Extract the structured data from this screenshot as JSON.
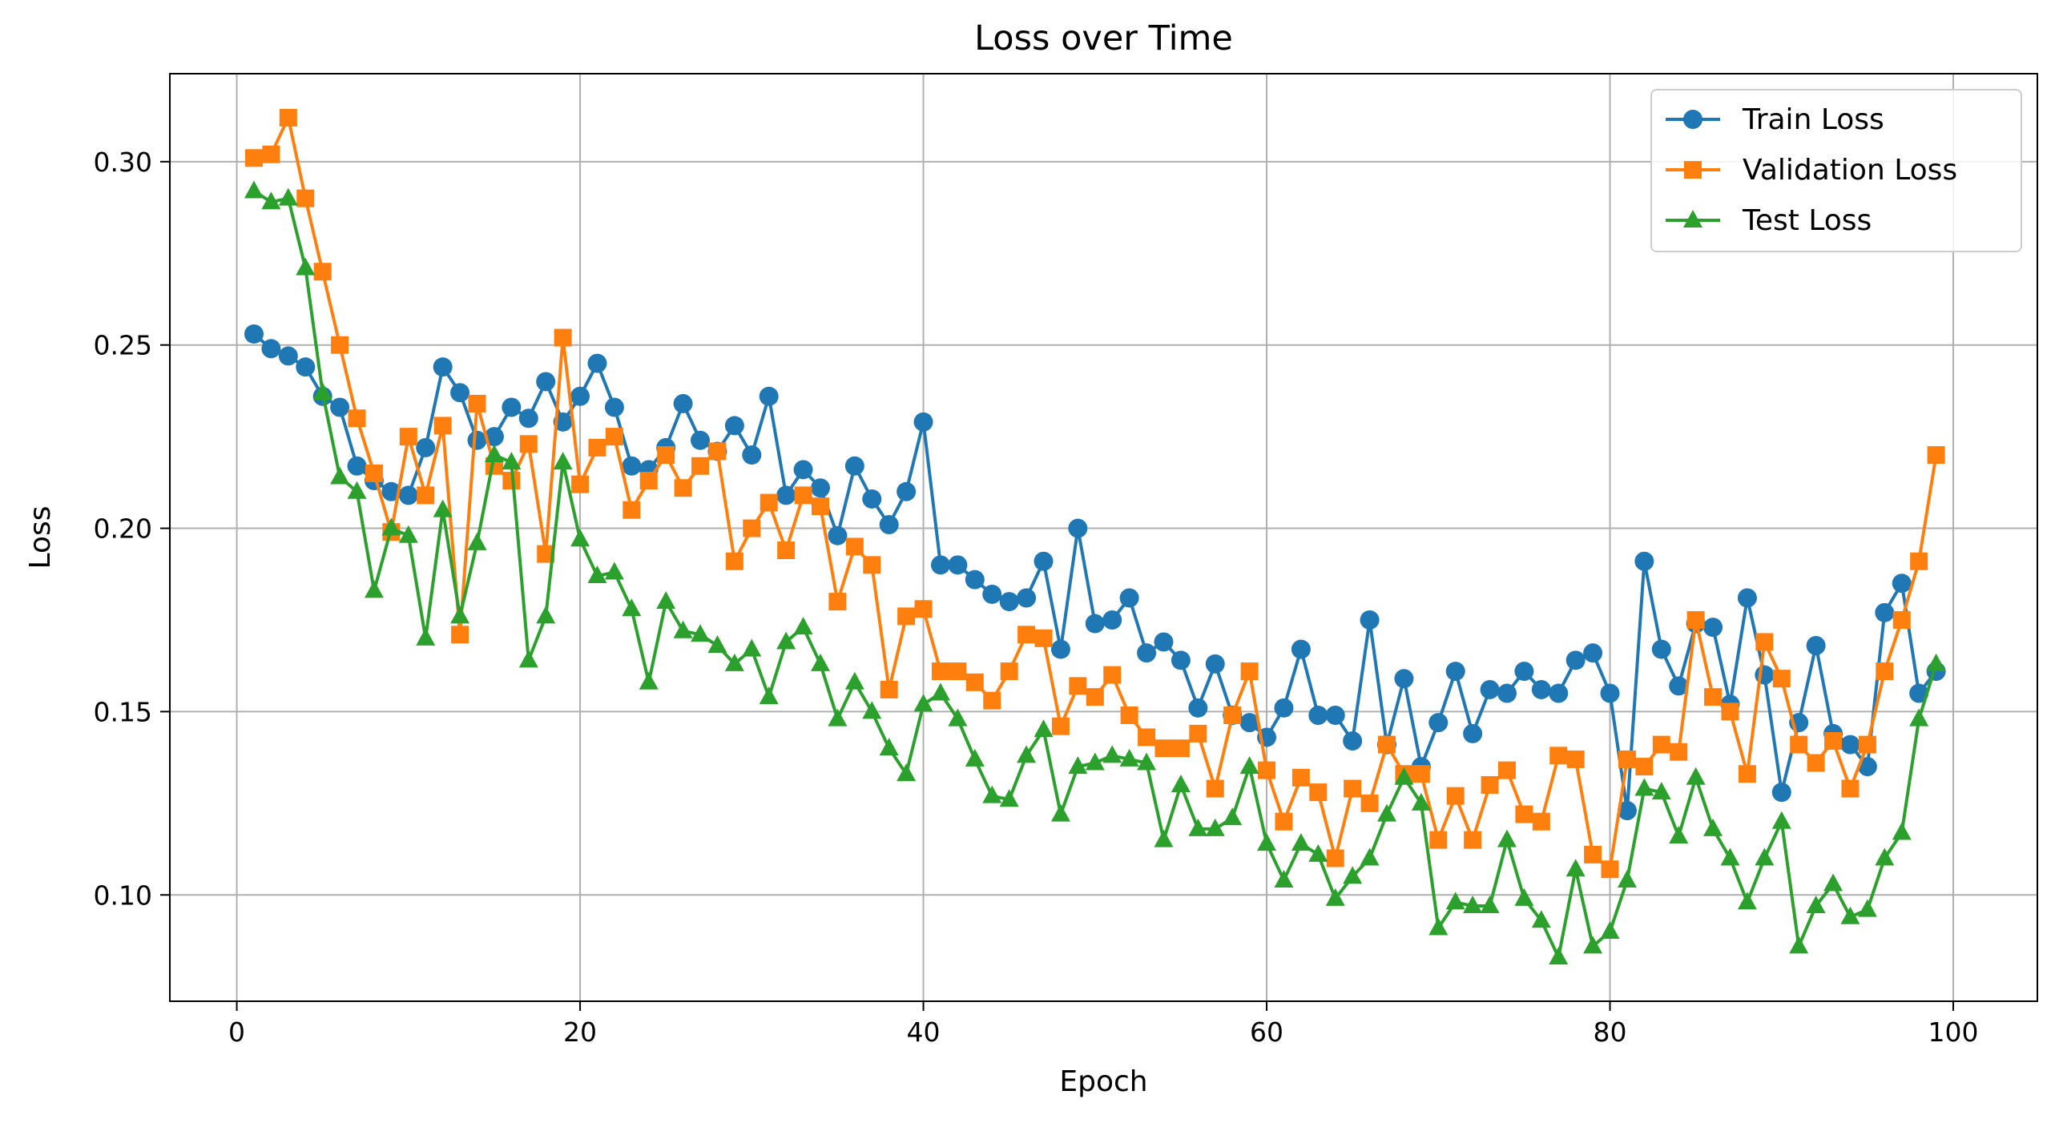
{
  "chart_data": {
    "type": "line",
    "title": "Loss over Time",
    "xlabel": "Epoch",
    "ylabel": "Loss",
    "xlim": [
      -3.9,
      104.9
    ],
    "ylim": [
      0.071,
      0.324
    ],
    "xticks": [
      0,
      20,
      40,
      60,
      80,
      100
    ],
    "xtick_labels": [
      "0",
      "20",
      "40",
      "60",
      "80",
      "100"
    ],
    "yticks": [
      0.1,
      0.15,
      0.2,
      0.25,
      0.3
    ],
    "ytick_labels": [
      "0.10",
      "0.15",
      "0.20",
      "0.25",
      "0.30"
    ],
    "grid": true,
    "legend_position": "top-right",
    "x": [
      1,
      2,
      3,
      4,
      5,
      6,
      7,
      8,
      9,
      10,
      11,
      12,
      13,
      14,
      15,
      16,
      17,
      18,
      19,
      20,
      21,
      22,
      23,
      24,
      25,
      26,
      27,
      28,
      29,
      30,
      31,
      32,
      33,
      34,
      35,
      36,
      37,
      38,
      39,
      40,
      41,
      42,
      43,
      44,
      45,
      46,
      47,
      48,
      49,
      50,
      51,
      52,
      53,
      54,
      55,
      56,
      57,
      58,
      59,
      60,
      61,
      62,
      63,
      64,
      65,
      66,
      67,
      68,
      69,
      70,
      71,
      72,
      73,
      74,
      75,
      76,
      77,
      78,
      79,
      80,
      81,
      82,
      83,
      84,
      85,
      86,
      87,
      88,
      89,
      90,
      91,
      92,
      93,
      94,
      95,
      96,
      97,
      98,
      99
    ],
    "series": [
      {
        "name": "Train Loss",
        "color": "#1f77b4",
        "marker": "circle",
        "values": [
          0.253,
          0.249,
          0.247,
          0.244,
          0.236,
          0.233,
          0.217,
          0.213,
          0.21,
          0.209,
          0.222,
          0.244,
          0.237,
          0.224,
          0.225,
          0.233,
          0.23,
          0.24,
          0.229,
          0.236,
          0.245,
          0.233,
          0.217,
          0.216,
          0.222,
          0.234,
          0.224,
          0.221,
          0.228,
          0.22,
          0.236,
          0.209,
          0.216,
          0.211,
          0.198,
          0.217,
          0.208,
          0.201,
          0.21,
          0.229,
          0.19,
          0.19,
          0.186,
          0.182,
          0.18,
          0.181,
          0.191,
          0.167,
          0.2,
          0.174,
          0.175,
          0.181,
          0.166,
          0.169,
          0.164,
          0.151,
          0.163,
          0.149,
          0.147,
          0.143,
          0.151,
          0.167,
          0.149,
          0.149,
          0.142,
          0.175,
          0.141,
          0.159,
          0.135,
          0.147,
          0.161,
          0.144,
          0.156,
          0.155,
          0.161,
          0.156,
          0.155,
          0.164,
          0.166,
          0.155,
          0.123,
          0.191,
          0.167,
          0.157,
          0.174,
          0.173,
          0.152,
          0.181,
          0.16,
          0.128,
          0.147,
          0.168,
          0.144,
          0.141,
          0.135,
          0.177,
          0.185,
          0.155,
          0.161
        ]
      },
      {
        "name": "Validation Loss",
        "color": "#ff7f0e",
        "marker": "square",
        "values": [
          0.301,
          0.302,
          0.312,
          0.29,
          0.27,
          0.25,
          0.23,
          0.215,
          0.199,
          0.225,
          0.209,
          0.228,
          0.171,
          0.234,
          0.217,
          0.213,
          0.223,
          0.193,
          0.252,
          0.212,
          0.222,
          0.225,
          0.205,
          0.213,
          0.22,
          0.211,
          0.217,
          0.221,
          0.191,
          0.2,
          0.207,
          0.194,
          0.209,
          0.206,
          0.18,
          0.195,
          0.19,
          0.156,
          0.176,
          0.178,
          0.161,
          0.161,
          0.158,
          0.153,
          0.161,
          0.171,
          0.17,
          0.146,
          0.157,
          0.154,
          0.16,
          0.149,
          0.143,
          0.14,
          0.14,
          0.144,
          0.129,
          0.149,
          0.161,
          0.134,
          0.12,
          0.132,
          0.128,
          0.11,
          0.129,
          0.125,
          0.141,
          0.133,
          0.133,
          0.115,
          0.127,
          0.115,
          0.13,
          0.134,
          0.122,
          0.12,
          0.138,
          0.137,
          0.111,
          0.107,
          0.137,
          0.135,
          0.141,
          0.139,
          0.175,
          0.154,
          0.15,
          0.133,
          0.169,
          0.159,
          0.141,
          0.136,
          0.142,
          0.129,
          0.141,
          0.161,
          0.175,
          0.191,
          0.22
        ]
      },
      {
        "name": "Test Loss",
        "color": "#2ca02c",
        "marker": "triangle",
        "values": [
          0.292,
          0.289,
          0.29,
          0.271,
          0.237,
          0.214,
          0.21,
          0.183,
          0.2,
          0.198,
          0.17,
          0.205,
          0.176,
          0.196,
          0.22,
          0.218,
          0.164,
          0.176,
          0.218,
          0.197,
          0.187,
          0.188,
          0.178,
          0.158,
          0.18,
          0.172,
          0.171,
          0.168,
          0.163,
          0.167,
          0.154,
          0.169,
          0.173,
          0.163,
          0.148,
          0.158,
          0.15,
          0.14,
          0.133,
          0.152,
          0.155,
          0.148,
          0.137,
          0.127,
          0.126,
          0.138,
          0.145,
          0.122,
          0.135,
          0.136,
          0.138,
          0.137,
          0.136,
          0.115,
          0.13,
          0.118,
          0.118,
          0.121,
          0.135,
          0.114,
          0.104,
          0.114,
          0.111,
          0.099,
          0.105,
          0.11,
          0.122,
          0.132,
          0.125,
          0.091,
          0.098,
          0.097,
          0.097,
          0.115,
          0.099,
          0.093,
          0.083,
          0.107,
          0.086,
          0.09,
          0.104,
          0.129,
          0.128,
          0.116,
          0.132,
          0.118,
          0.11,
          0.098,
          0.11,
          0.12,
          0.086,
          0.097,
          0.103,
          0.094,
          0.096,
          0.11,
          0.117,
          0.148,
          0.163
        ]
      }
    ]
  }
}
